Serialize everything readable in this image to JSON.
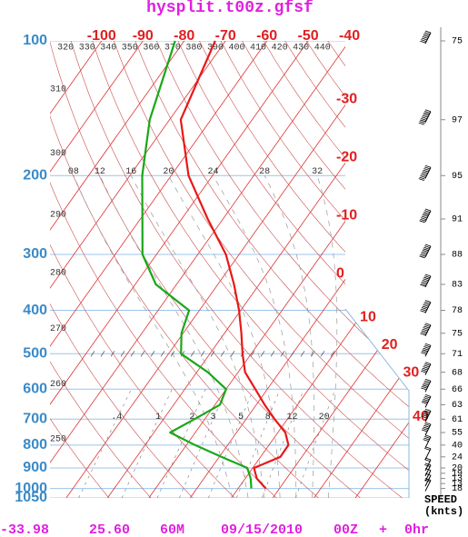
{
  "chart_data": {
    "type": "skewt",
    "title": "hysplit.t00z.gfsf",
    "ylim": [
      100,
      1050
    ],
    "yticks": [
      100,
      200,
      300,
      400,
      500,
      600,
      700,
      800,
      900,
      1000,
      1050
    ],
    "log_y": true,
    "xlim": [
      -112.5,
      -41
    ],
    "xticks": [
      -100,
      -90,
      -80,
      -70,
      -60,
      -50,
      -40,
      -30,
      -20,
      -10,
      0,
      10,
      20,
      30,
      40
    ],
    "dry_adiabats": [
      250,
      260,
      270,
      280,
      290,
      300,
      310,
      320,
      330,
      340,
      350,
      360,
      370,
      380,
      390,
      400,
      410,
      420,
      430,
      440
    ],
    "moist_adiabats": [
      {
        "value": 8,
        "label": "08"
      },
      12,
      16,
      20,
      24,
      28,
      32
    ],
    "mixing_ratios": [
      {
        "value": 0.4,
        "label": ".4"
      },
      1,
      2,
      3,
      5,
      8,
      12,
      20
    ],
    "y": [
      100,
      150,
      200,
      250,
      300,
      350,
      400,
      450,
      500,
      550,
      600,
      650,
      700,
      750,
      800,
      850,
      900,
      950,
      1000
    ],
    "series": [
      {
        "color": "#e81818",
        "values": [
          -72.5,
          -67.3,
          -55.8,
          -43.7,
          -33.2,
          -26.1,
          -20.4,
          -15.9,
          -12.1,
          -8.3,
          -2.9,
          2,
          6.9,
          11.8,
          14.7,
          14.8,
          10.3,
          12.8,
          16.7
        ]
      },
      {
        "color": "#18a818",
        "values": [
          -82.2,
          -74.8,
          -67,
          -59.5,
          -53.4,
          -45,
          -32.5,
          -30.4,
          -27,
          -17.3,
          -10,
          -8.8,
          -12.5,
          -16.1,
          -7.9,
          0.5,
          8.7,
          11.3,
          13.2
        ]
      }
    ],
    "wind": {
      "header": "SPEED",
      "units": "(knts)",
      "pressure": [
        100,
        150,
        200,
        250,
        300,
        350,
        400,
        450,
        500,
        550,
        600,
        650,
        700,
        750,
        800,
        850,
        900,
        925,
        950,
        975,
        1000
      ],
      "speed": [
        75,
        97,
        95,
        91,
        88,
        83,
        78,
        75,
        71,
        68,
        66,
        63,
        61,
        55,
        40,
        24,
        20,
        19,
        13,
        13,
        18
      ]
    },
    "footer": [
      "-33.98",
      "25.60",
      "60M",
      "09/15/2010",
      "00Z",
      "+",
      "0hr"
    ]
  }
}
